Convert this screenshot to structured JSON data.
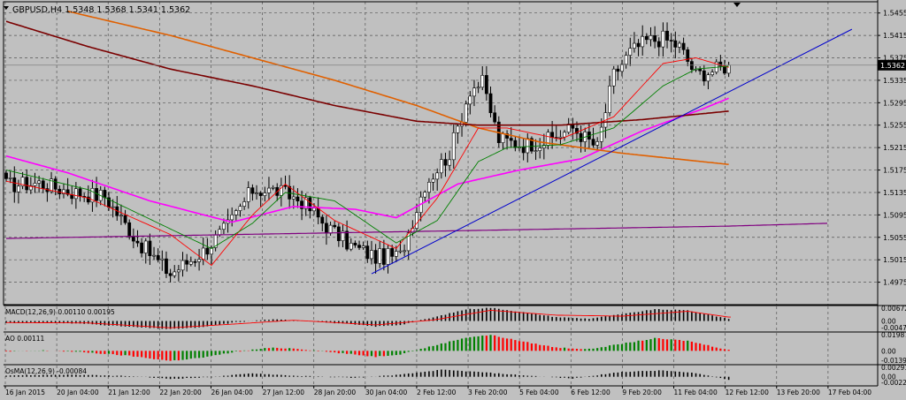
{
  "header": {
    "symbol_line": "GBPUSD,H4  1.5348 1.5368 1.5341 1.5362"
  },
  "colors": {
    "background": "#c0c0c0",
    "grid": "#555555",
    "bull": "#ffffff",
    "bear": "#000000",
    "ma_magenta": "#ff00ff",
    "ma_orange": "#e06000",
    "ma_darkred": "#7a0000",
    "ma_purple": "#800080",
    "ma_red": "#ff0000",
    "ma_green": "#008000",
    "trendline": "#0000cc",
    "osc_green": "#008000",
    "osc_red": "#ff0000"
  },
  "chart_data": [
    {
      "type": "candlestick",
      "pane": "price",
      "symbol": "GBPUSD",
      "timeframe": "H4",
      "ohlc_header": {
        "open": 1.5348,
        "high": 1.5368,
        "low": 1.5341,
        "close": 1.5362
      },
      "current_price_label": "1.5362",
      "ylim": [
        1.4935,
        1.5475
      ],
      "y_ticks": [
        "1.5455",
        "1.5415",
        "1.5375",
        "1.5335",
        "1.5295",
        "1.5255",
        "1.5215",
        "1.5175",
        "1.5135",
        "1.5095",
        "1.5055",
        "1.5015",
        "1.4975"
      ],
      "x_ticks": [
        "16 Jan 2015",
        "20 Jan 04:00",
        "21 Jan 12:00",
        "22 Jan 20:00",
        "26 Jan 04:00",
        "27 Jan 12:00",
        "28 Jan 20:00",
        "30 Jan 04:00",
        "2 Feb 12:00",
        "3 Feb 20:00",
        "5 Feb 04:00",
        "6 Feb 12:00",
        "9 Feb 20:00",
        "11 Feb 04:00",
        "12 Feb 12:00",
        "13 Feb 20:00",
        "17 Feb 04:00"
      ],
      "anchor_closes": [
        [
          0,
          1.5148
        ],
        [
          8,
          1.5152
        ],
        [
          16,
          1.5136
        ],
        [
          24,
          1.5128
        ],
        [
          32,
          1.5048
        ],
        [
          40,
          1.499
        ],
        [
          48,
          1.503
        ],
        [
          54,
          1.5075
        ],
        [
          60,
          1.514
        ],
        [
          66,
          1.5138
        ],
        [
          72,
          1.512
        ],
        [
          78,
          1.5075
        ],
        [
          84,
          1.504
        ],
        [
          90,
          1.502
        ],
        [
          96,
          1.5022
        ],
        [
          102,
          1.515
        ],
        [
          108,
          1.5205
        ],
        [
          113,
          1.532
        ],
        [
          116,
          1.533
        ],
        [
          120,
          1.523
        ],
        [
          126,
          1.522
        ],
        [
          132,
          1.5228
        ],
        [
          138,
          1.525
        ],
        [
          144,
          1.5215
        ],
        [
          148,
          1.5345
        ],
        [
          152,
          1.5385
        ],
        [
          156,
          1.5405
        ],
        [
          160,
          1.541
        ],
        [
          164,
          1.5395
        ],
        [
          168,
          1.5345
        ],
        [
          172,
          1.5352
        ],
        [
          176,
          1.5362
        ]
      ],
      "moving_averages": [
        {
          "color": "ma_magenta",
          "points": [
            [
              0,
              1.52
            ],
            [
              15,
              1.517
            ],
            [
              35,
              1.512
            ],
            [
              55,
              1.5082
            ],
            [
              70,
              1.511
            ],
            [
              85,
              1.5105
            ],
            [
              95,
              1.509
            ],
            [
              110,
              1.515
            ],
            [
              125,
              1.5175
            ],
            [
              140,
              1.5195
            ],
            [
              155,
              1.5245
            ],
            [
              170,
              1.5285
            ],
            [
              176,
              1.5303
            ]
          ]
        },
        {
          "color": "ma_orange",
          "points": [
            [
              15,
              1.5458
            ],
            [
              40,
              1.5415
            ],
            [
              60,
              1.5375
            ],
            [
              80,
              1.5335
            ],
            [
              100,
              1.529
            ],
            [
              115,
              1.525
            ],
            [
              130,
              1.5225
            ],
            [
              150,
              1.5205
            ],
            [
              176,
              1.5185
            ]
          ]
        },
        {
          "color": "ma_darkred",
          "points": [
            [
              0,
              1.544
            ],
            [
              20,
              1.5395
            ],
            [
              40,
              1.5355
            ],
            [
              60,
              1.5325
            ],
            [
              80,
              1.529
            ],
            [
              100,
              1.5262
            ],
            [
              115,
              1.5255
            ],
            [
              135,
              1.5255
            ],
            [
              155,
              1.5265
            ],
            [
              176,
              1.528
            ]
          ]
        },
        {
          "color": "ma_purple",
          "points": [
            [
              0,
              1.5053
            ],
            [
              176,
              1.5075
            ],
            [
              200,
              1.508
            ]
          ]
        },
        {
          "color": "ma_red",
          "points": [
            [
              0,
              1.5155
            ],
            [
              20,
              1.5125
            ],
            [
              40,
              1.506
            ],
            [
              50,
              1.5005
            ],
            [
              60,
              1.5095
            ],
            [
              68,
              1.515
            ],
            [
              80,
              1.5085
            ],
            [
              95,
              1.5035
            ],
            [
              105,
              1.5125
            ],
            [
              115,
              1.525
            ],
            [
              122,
              1.525
            ],
            [
              135,
              1.523
            ],
            [
              148,
              1.527
            ],
            [
              160,
              1.5365
            ],
            [
              168,
              1.5375
            ],
            [
              176,
              1.5358
            ]
          ]
        },
        {
          "color": "ma_green",
          "points": [
            [
              0,
              1.5175
            ],
            [
              20,
              1.514
            ],
            [
              40,
              1.507
            ],
            [
              50,
              1.5035
            ],
            [
              60,
              1.508
            ],
            [
              68,
              1.5135
            ],
            [
              80,
              1.512
            ],
            [
              95,
              1.5045
            ],
            [
              105,
              1.5085
            ],
            [
              115,
              1.519
            ],
            [
              122,
              1.5215
            ],
            [
              135,
              1.522
            ],
            [
              148,
              1.525
            ],
            [
              160,
              1.5325
            ],
            [
              168,
              1.5355
            ],
            [
              176,
              1.536
            ]
          ]
        }
      ],
      "trendline": {
        "from": [
          89,
          1.499
        ],
        "to": [
          206,
          1.5426
        ]
      }
    },
    {
      "type": "histogram",
      "pane": "macd",
      "label": "MACD(12,26,9) 0.00110 0.00195",
      "y_ticks": [
        "0.00672",
        "0.00",
        "-0.00471"
      ],
      "ylim": [
        -0.0052,
        0.0075
      ],
      "anchor_values": [
        [
          0,
          -0.001
        ],
        [
          10,
          -0.0008
        ],
        [
          20,
          -0.0015
        ],
        [
          30,
          -0.003
        ],
        [
          40,
          -0.0042
        ],
        [
          48,
          -0.0032
        ],
        [
          56,
          -0.0006
        ],
        [
          64,
          0.0008
        ],
        [
          70,
          0.0005
        ],
        [
          80,
          -0.001
        ],
        [
          90,
          -0.0028
        ],
        [
          96,
          -0.002
        ],
        [
          104,
          0.0018
        ],
        [
          112,
          0.006
        ],
        [
          118,
          0.0068
        ],
        [
          126,
          0.0045
        ],
        [
          134,
          0.002
        ],
        [
          142,
          0.0012
        ],
        [
          150,
          0.0035
        ],
        [
          158,
          0.006
        ],
        [
          166,
          0.0055
        ],
        [
          176,
          0.0011
        ]
      ],
      "signal_anchor": [
        [
          0,
          -0.0008
        ],
        [
          20,
          -0.001
        ],
        [
          40,
          -0.0035
        ],
        [
          56,
          -0.0015
        ],
        [
          70,
          0.0004
        ],
        [
          90,
          -0.002
        ],
        [
          104,
          0.0005
        ],
        [
          118,
          0.0055
        ],
        [
          134,
          0.003
        ],
        [
          150,
          0.0025
        ],
        [
          166,
          0.005
        ],
        [
          176,
          0.002
        ]
      ]
    },
    {
      "type": "histogram",
      "pane": "ao",
      "label": "AO 0.00111",
      "y_ticks": [
        "0.01987",
        "0.00",
        "-0.01391"
      ],
      "ylim": [
        -0.0155,
        0.0215
      ],
      "anchor_values": [
        [
          0,
          -0.001
        ],
        [
          10,
          0.0005
        ],
        [
          20,
          -0.002
        ],
        [
          30,
          -0.006
        ],
        [
          40,
          -0.012
        ],
        [
          48,
          -0.008
        ],
        [
          56,
          -0.001
        ],
        [
          64,
          0.0035
        ],
        [
          70,
          0.003
        ],
        [
          80,
          -0.002
        ],
        [
          90,
          -0.007
        ],
        [
          96,
          -0.004
        ],
        [
          104,
          0.006
        ],
        [
          112,
          0.016
        ],
        [
          118,
          0.019
        ],
        [
          126,
          0.011
        ],
        [
          134,
          0.004
        ],
        [
          142,
          0.002
        ],
        [
          150,
          0.0085
        ],
        [
          158,
          0.015
        ],
        [
          166,
          0.012
        ],
        [
          176,
          0.0011
        ]
      ]
    },
    {
      "type": "histogram",
      "pane": "osma",
      "label": "OsMA(12,26,9) -0.00084",
      "y_ticks": [
        "0.00291",
        "0.00",
        "-0.00229"
      ],
      "ylim": [
        -0.0026,
        0.0032
      ],
      "anchor_values": [
        [
          0,
          0.0004
        ],
        [
          15,
          0.0006
        ],
        [
          30,
          0.0002
        ],
        [
          40,
          -0.0006
        ],
        [
          50,
          -0.0001
        ],
        [
          60,
          0.001
        ],
        [
          70,
          0.0003
        ],
        [
          85,
          -0.0003
        ],
        [
          96,
          0.0006
        ],
        [
          106,
          0.002
        ],
        [
          116,
          0.0013
        ],
        [
          126,
          0.0004
        ],
        [
          138,
          -0.0005
        ],
        [
          150,
          0.0014
        ],
        [
          160,
          0.0018
        ],
        [
          168,
          0.001
        ],
        [
          176,
          -0.0008
        ]
      ]
    }
  ]
}
